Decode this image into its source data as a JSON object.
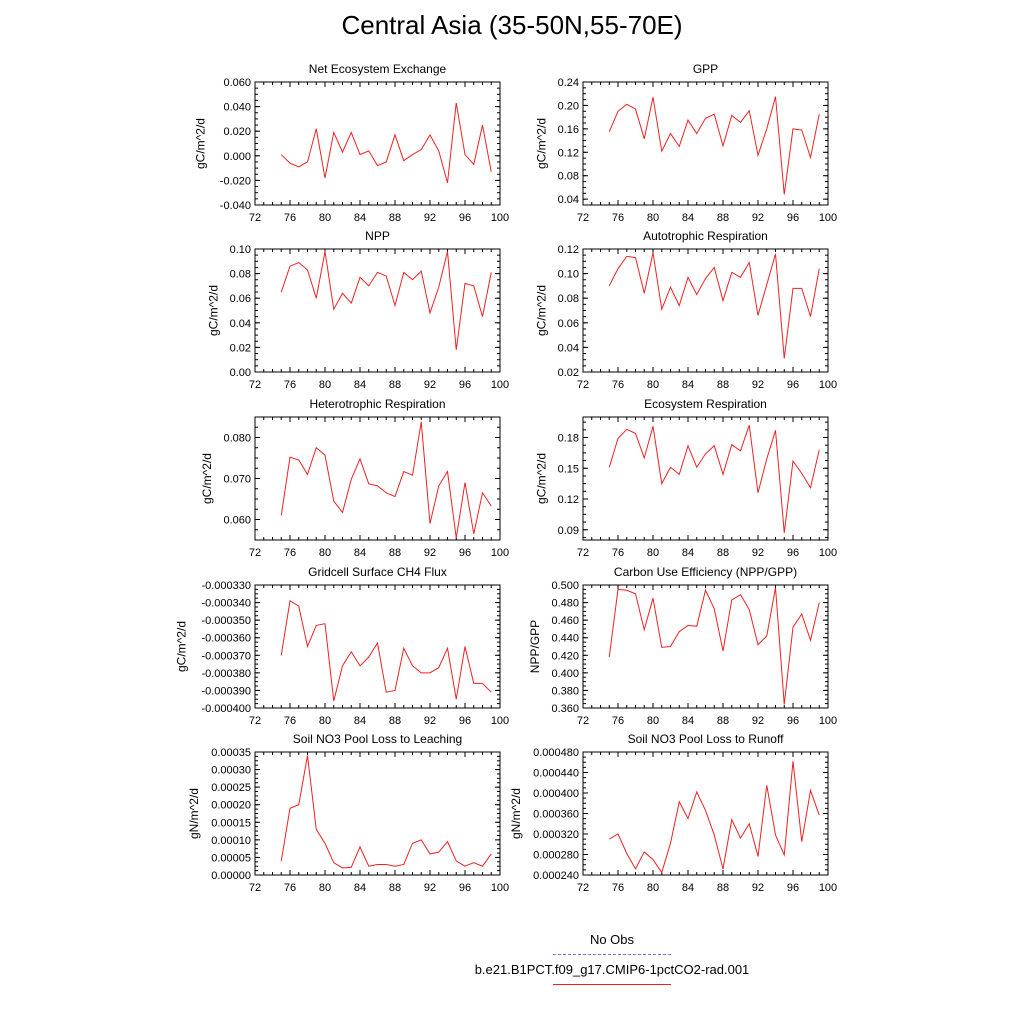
{
  "title": "Central Asia (35-50N,55-70E)",
  "legend": {
    "entries": [
      {
        "label": "No Obs",
        "color": "#7777dd",
        "dash": "dashed"
      },
      {
        "label": "b.e21.B1PCT.f09_g17.CMIP6-1pctCO2-rad.001",
        "color": "#ee2222",
        "dash": "solid"
      }
    ]
  },
  "chart_data": [
    {
      "type": "line",
      "title": "Net Ecosystem Exchange",
      "ylabel": "gC/m^2/d",
      "xlim": [
        72,
        100
      ],
      "ylim": [
        -0.04,
        0.06
      ],
      "xticks": [
        "72",
        "76",
        "80",
        "84",
        "88",
        "92",
        "96",
        "100"
      ],
      "yticks": [
        "-0.040",
        "-0.020",
        "0.000",
        "0.020",
        "0.040",
        "0.060"
      ],
      "x": [
        75,
        76,
        77,
        78,
        79,
        80,
        81,
        82,
        83,
        84,
        85,
        86,
        87,
        88,
        89,
        90,
        91,
        92,
        93,
        94,
        95,
        96,
        97,
        98,
        99
      ],
      "series": [
        {
          "name": "b.e21.B1PCT.f09_g17.CMIP6-1pctCO2-rad.001",
          "color": "#ee2222",
          "values": [
            0.001,
            -0.006,
            -0.009,
            -0.005,
            0.022,
            -0.018,
            0.019,
            0.003,
            0.019,
            0.001,
            0.004,
            -0.008,
            -0.005,
            0.017,
            -0.004,
            0.001,
            0.005,
            0.017,
            0.004,
            -0.022,
            0.043,
            0.001,
            -0.007,
            0.025,
            -0.013
          ]
        }
      ]
    },
    {
      "type": "line",
      "title": "GPP",
      "ylabel": "gC/m^2/d",
      "xlim": [
        72,
        100
      ],
      "ylim": [
        0.03,
        0.24
      ],
      "xticks": [
        "72",
        "76",
        "80",
        "84",
        "88",
        "92",
        "96",
        "100"
      ],
      "yticks": [
        "0.04",
        "0.08",
        "0.12",
        "0.16",
        "0.20",
        "0.24"
      ],
      "x": [
        75,
        76,
        77,
        78,
        79,
        80,
        81,
        82,
        83,
        84,
        85,
        86,
        87,
        88,
        89,
        90,
        91,
        92,
        93,
        94,
        95,
        96,
        97,
        98,
        99
      ],
      "series": [
        {
          "name": "b.e21.B1PCT.f09_g17.CMIP6-1pctCO2-rad.001",
          "color": "#ee2222",
          "values": [
            0.155,
            0.19,
            0.202,
            0.194,
            0.143,
            0.214,
            0.122,
            0.152,
            0.13,
            0.175,
            0.152,
            0.178,
            0.185,
            0.131,
            0.183,
            0.171,
            0.191,
            0.115,
            0.16,
            0.215,
            0.048,
            0.16,
            0.158,
            0.111,
            0.185
          ]
        }
      ]
    },
    {
      "type": "line",
      "title": "NPP",
      "ylabel": "gC/m^2/d",
      "xlim": [
        72,
        100
      ],
      "ylim": [
        0.0,
        0.1
      ],
      "xticks": [
        "72",
        "76",
        "80",
        "84",
        "88",
        "92",
        "96",
        "100"
      ],
      "yticks": [
        "0.00",
        "0.02",
        "0.04",
        "0.06",
        "0.08",
        "0.10"
      ],
      "x": [
        75,
        76,
        77,
        78,
        79,
        80,
        81,
        82,
        83,
        84,
        85,
        86,
        87,
        88,
        89,
        90,
        91,
        92,
        93,
        94,
        95,
        96,
        97,
        98,
        99
      ],
      "series": [
        {
          "name": "b.e21.B1PCT.f09_g17.CMIP6-1pctCO2-rad.001",
          "color": "#ee2222",
          "values": [
            0.065,
            0.086,
            0.089,
            0.083,
            0.06,
            0.098,
            0.051,
            0.064,
            0.056,
            0.077,
            0.07,
            0.081,
            0.078,
            0.054,
            0.081,
            0.075,
            0.082,
            0.048,
            0.069,
            0.098,
            0.018,
            0.072,
            0.07,
            0.045,
            0.081
          ]
        }
      ]
    },
    {
      "type": "line",
      "title": "Autotrophic Respiration",
      "ylabel": "gC/m^2/d",
      "xlim": [
        72,
        100
      ],
      "ylim": [
        0.02,
        0.12
      ],
      "xticks": [
        "72",
        "76",
        "80",
        "84",
        "88",
        "92",
        "96",
        "100"
      ],
      "yticks": [
        "0.02",
        "0.04",
        "0.06",
        "0.08",
        "0.10",
        "0.12"
      ],
      "x": [
        75,
        76,
        77,
        78,
        79,
        80,
        81,
        82,
        83,
        84,
        85,
        86,
        87,
        88,
        89,
        90,
        91,
        92,
        93,
        94,
        95,
        96,
        97,
        98,
        99
      ],
      "series": [
        {
          "name": "b.e21.B1PCT.f09_g17.CMIP6-1pctCO2-rad.001",
          "color": "#ee2222",
          "values": [
            0.09,
            0.104,
            0.114,
            0.113,
            0.084,
            0.117,
            0.071,
            0.089,
            0.074,
            0.097,
            0.083,
            0.096,
            0.105,
            0.078,
            0.101,
            0.097,
            0.109,
            0.066,
            0.091,
            0.116,
            0.031,
            0.088,
            0.088,
            0.065,
            0.104
          ]
        }
      ]
    },
    {
      "type": "line",
      "title": "Heterotrophic Respiration",
      "ylabel": "gC/m^2/d",
      "xlim": [
        72,
        100
      ],
      "ylim": [
        0.055,
        0.085
      ],
      "xticks": [
        "72",
        "76",
        "80",
        "84",
        "88",
        "92",
        "96",
        "100"
      ],
      "yticks": [
        "0.060",
        "0.070",
        "0.080"
      ],
      "x": [
        75,
        76,
        77,
        78,
        79,
        80,
        81,
        82,
        83,
        84,
        85,
        86,
        87,
        88,
        89,
        90,
        91,
        92,
        93,
        94,
        95,
        96,
        97,
        98,
        99
      ],
      "series": [
        {
          "name": "b.e21.B1PCT.f09_g17.CMIP6-1pctCO2-rad.001",
          "color": "#ee2222",
          "values": [
            0.061,
            0.0752,
            0.0745,
            0.071,
            0.0775,
            0.0757,
            0.0645,
            0.0617,
            0.0698,
            0.0748,
            0.0687,
            0.0682,
            0.0665,
            0.0656,
            0.0717,
            0.0708,
            0.0838,
            0.059,
            0.0682,
            0.0717,
            0.0555,
            0.069,
            0.0565,
            0.0665,
            0.0633
          ]
        }
      ]
    },
    {
      "type": "line",
      "title": "Ecosystem Respiration",
      "ylabel": "gC/m^2/d",
      "xlim": [
        72,
        100
      ],
      "ylim": [
        0.08,
        0.2
      ],
      "xticks": [
        "72",
        "76",
        "80",
        "84",
        "88",
        "92",
        "96",
        "100"
      ],
      "yticks": [
        "0.09",
        "0.12",
        "0.15",
        "0.18"
      ],
      "x": [
        75,
        76,
        77,
        78,
        79,
        80,
        81,
        82,
        83,
        84,
        85,
        86,
        87,
        88,
        89,
        90,
        91,
        92,
        93,
        94,
        95,
        96,
        97,
        98,
        99
      ],
      "series": [
        {
          "name": "b.e21.B1PCT.f09_g17.CMIP6-1pctCO2-rad.001",
          "color": "#ee2222",
          "values": [
            0.151,
            0.179,
            0.188,
            0.184,
            0.16,
            0.191,
            0.135,
            0.151,
            0.144,
            0.172,
            0.151,
            0.164,
            0.172,
            0.144,
            0.173,
            0.167,
            0.192,
            0.126,
            0.159,
            0.187,
            0.087,
            0.157,
            0.145,
            0.131,
            0.168
          ]
        }
      ]
    },
    {
      "type": "line",
      "title": "Gridcell Surface CH4 Flux",
      "ylabel": "gC/m^2/d",
      "xlim": [
        72,
        100
      ],
      "ylim": [
        -0.0004,
        -0.00033
      ],
      "xticks": [
        "72",
        "76",
        "80",
        "84",
        "88",
        "92",
        "96",
        "100"
      ],
      "yticks": [
        "-0.000400",
        "-0.000390",
        "-0.000380",
        "-0.000370",
        "-0.000360",
        "-0.000350",
        "-0.000340",
        "-0.000330"
      ],
      "x": [
        75,
        76,
        77,
        78,
        79,
        80,
        81,
        82,
        83,
        84,
        85,
        86,
        87,
        88,
        89,
        90,
        91,
        92,
        93,
        94,
        95,
        96,
        97,
        98,
        99
      ],
      "series": [
        {
          "name": "b.e21.B1PCT.f09_g17.CMIP6-1pctCO2-rad.001",
          "color": "#ee2222",
          "values": [
            -0.00037,
            -0.000339,
            -0.000342,
            -0.000365,
            -0.000353,
            -0.000352,
            -0.000396,
            -0.000376,
            -0.000368,
            -0.000376,
            -0.000371,
            -0.000363,
            -0.000391,
            -0.00039,
            -0.000366,
            -0.000376,
            -0.00038,
            -0.00038,
            -0.000377,
            -0.000366,
            -0.000395,
            -0.000365,
            -0.000386,
            -0.000386,
            -0.000391
          ]
        }
      ]
    },
    {
      "type": "line",
      "title": "Carbon Use Efficiency (NPP/GPP)",
      "ylabel": "NPP/GPP",
      "xlim": [
        72,
        100
      ],
      "ylim": [
        0.36,
        0.5
      ],
      "xticks": [
        "72",
        "76",
        "80",
        "84",
        "88",
        "92",
        "96",
        "100"
      ],
      "yticks": [
        "0.360",
        "0.380",
        "0.400",
        "0.420",
        "0.440",
        "0.460",
        "0.480",
        "0.500"
      ],
      "x": [
        75,
        76,
        77,
        78,
        79,
        80,
        81,
        82,
        83,
        84,
        85,
        86,
        87,
        88,
        89,
        90,
        91,
        92,
        93,
        94,
        95,
        96,
        97,
        98,
        99
      ],
      "series": [
        {
          "name": "b.e21.B1PCT.f09_g17.CMIP6-1pctCO2-rad.001",
          "color": "#ee2222",
          "values": [
            0.418,
            0.495,
            0.494,
            0.49,
            0.449,
            0.485,
            0.429,
            0.43,
            0.447,
            0.454,
            0.453,
            0.494,
            0.473,
            0.425,
            0.483,
            0.489,
            0.472,
            0.432,
            0.442,
            0.497,
            0.364,
            0.452,
            0.467,
            0.437,
            0.48
          ]
        }
      ]
    },
    {
      "type": "line",
      "title": "Soil NO3 Pool Loss to Leaching",
      "ylabel": "gN/m^2/d",
      "xlim": [
        72,
        100
      ],
      "ylim": [
        0.0,
        0.00035
      ],
      "xticks": [
        "72",
        "76",
        "80",
        "84",
        "88",
        "92",
        "96",
        "100"
      ],
      "yticks": [
        "0.00000",
        "0.00005",
        "0.00010",
        "0.00015",
        "0.00020",
        "0.00025",
        "0.00030",
        "0.00035"
      ],
      "x": [
        75,
        76,
        77,
        78,
        79,
        80,
        81,
        82,
        83,
        84,
        85,
        86,
        87,
        88,
        89,
        90,
        91,
        92,
        93,
        94,
        95,
        96,
        97,
        98,
        99
      ],
      "series": [
        {
          "name": "b.e21.B1PCT.f09_g17.CMIP6-1pctCO2-rad.001",
          "color": "#ee2222",
          "values": [
            4e-05,
            0.00019,
            0.0002,
            0.00034,
            0.00013,
            9e-05,
            3.5e-05,
            2e-05,
            2.2e-05,
            8e-05,
            2.5e-05,
            3e-05,
            3e-05,
            2.5e-05,
            3e-05,
            9e-05,
            0.0001,
            6e-05,
            6.5e-05,
            9.5e-05,
            4e-05,
            2.5e-05,
            3.5e-05,
            2.5e-05,
            6e-05
          ]
        }
      ]
    },
    {
      "type": "line",
      "title": "Soil NO3 Pool Loss to Runoff",
      "ylabel": "gN/m^2/d",
      "xlim": [
        72,
        100
      ],
      "ylim": [
        0.00024,
        0.00048
      ],
      "xticks": [
        "72",
        "76",
        "80",
        "84",
        "88",
        "92",
        "96",
        "100"
      ],
      "yticks": [
        "0.000240",
        "0.000280",
        "0.000320",
        "0.000360",
        "0.000400",
        "0.000440",
        "0.000480"
      ],
      "x": [
        75,
        76,
        77,
        78,
        79,
        80,
        81,
        82,
        83,
        84,
        85,
        86,
        87,
        88,
        89,
        90,
        91,
        92,
        93,
        94,
        95,
        96,
        97,
        98,
        99
      ],
      "series": [
        {
          "name": "b.e21.B1PCT.f09_g17.CMIP6-1pctCO2-rad.001",
          "color": "#ee2222",
          "values": [
            0.00031,
            0.00032,
            0.000282,
            0.000252,
            0.000285,
            0.00027,
            0.000245,
            0.000302,
            0.000383,
            0.00035,
            0.000402,
            0.000366,
            0.000318,
            0.000252,
            0.000348,
            0.000312,
            0.00034,
            0.000276,
            0.000415,
            0.000318,
            0.000279,
            0.000462,
            0.000305,
            0.000405,
            0.000357
          ]
        }
      ]
    }
  ]
}
